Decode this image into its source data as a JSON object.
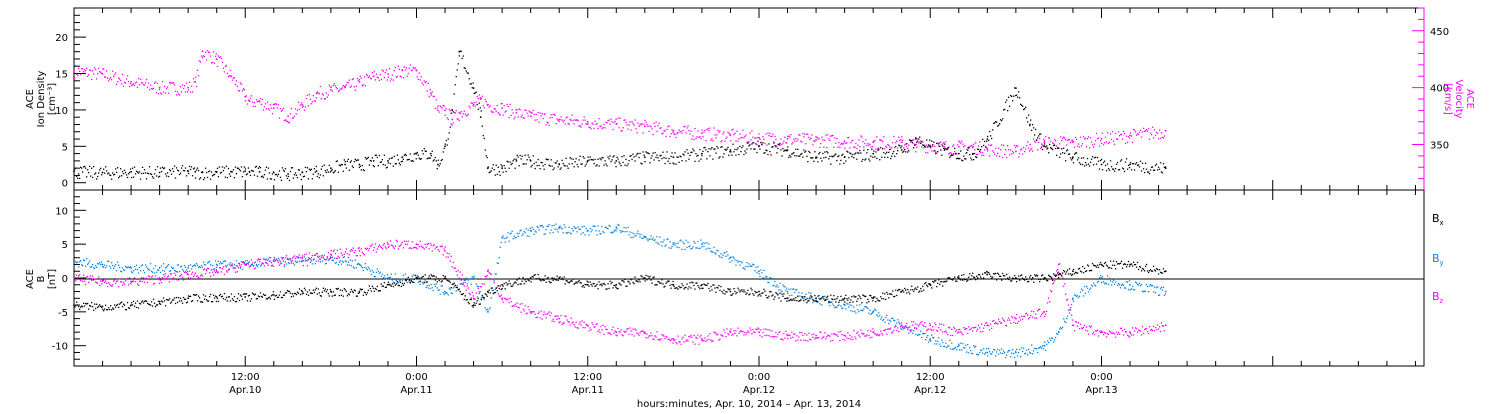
{
  "colors": {
    "axis": "#000000",
    "density": "#000000",
    "velocity": "#ff00ff",
    "bx": "#000000",
    "by": "#0a84e0",
    "bz": "#ff00ff"
  },
  "time_axis": {
    "label": "hours:minutes, Apr. 10, 2014 – Apr. 13, 2014",
    "ticks": [
      {
        "hours": 12,
        "time": "12:00",
        "date": "Apr.10"
      },
      {
        "hours": 24,
        "time": "0:00",
        "date": "Apr.11"
      },
      {
        "hours": 36,
        "time": "12:00",
        "date": "Apr.11"
      },
      {
        "hours": 48,
        "time": "0:00",
        "date": "Apr.12"
      },
      {
        "hours": 60,
        "time": "12:00",
        "date": "Apr.12"
      },
      {
        "hours": 72,
        "time": "0:00",
        "date": "Apr.13"
      }
    ]
  },
  "chart_data": [
    {
      "type": "scatter",
      "panel": "ion-density-velocity",
      "ylabel_left": [
        "ACE",
        "Ion Density",
        "[cm⁻³]"
      ],
      "ylabel_right": [
        "ACE",
        "Velocity",
        "[km/s]"
      ],
      "ylim_left": [
        -1,
        24
      ],
      "ylim_right": [
        310,
        470
      ],
      "yticks_left": [
        0,
        5,
        10,
        15,
        20
      ],
      "yticks_right": [
        350,
        400,
        450
      ],
      "x_hours": [
        0,
        2,
        4,
        6,
        8,
        8.5,
        9,
        10,
        11,
        12,
        12.3,
        13,
        14,
        15,
        16,
        17,
        18,
        19,
        20,
        21,
        22,
        23,
        24,
        25,
        25.5,
        26,
        26.5,
        27,
        28,
        28.5,
        29,
        30,
        31,
        32,
        34,
        36,
        38,
        40,
        42,
        44,
        46,
        48,
        50,
        52,
        54,
        56,
        58,
        59,
        60,
        61,
        62,
        63,
        64,
        66,
        67,
        68,
        70,
        72,
        74,
        76.5
      ],
      "series": [
        {
          "name": "Ion Density",
          "axis": "left",
          "values": [
            1.5,
            1.4,
            1.5,
            1.4,
            1.6,
            1.5,
            1.4,
            1.5,
            1.5,
            1.6,
            1.5,
            1.5,
            1.4,
            1.2,
            1.4,
            1.6,
            2.0,
            2.5,
            2.5,
            3.0,
            3.0,
            3.5,
            4.0,
            4.0,
            2.5,
            5.0,
            10.0,
            18.0,
            13.0,
            9.0,
            2.0,
            2.0,
            3.0,
            3.0,
            2.5,
            3.0,
            3.0,
            3.5,
            3.5,
            4.0,
            4.5,
            5.0,
            4.5,
            3.5,
            3.5,
            4.0,
            4.5,
            6.0,
            5.0,
            4.5,
            4.0,
            4.0,
            6.0,
            13.0,
            8.0,
            5.0,
            3.5,
            2.5,
            2.5,
            2.0
          ]
        },
        {
          "name": "Velocity",
          "axis": "right",
          "values": [
            415,
            412,
            405,
            400,
            400,
            405,
            432,
            425,
            410,
            392,
            388,
            388,
            382,
            375,
            385,
            395,
            398,
            400,
            405,
            410,
            412,
            415,
            415,
            395,
            380,
            380,
            372,
            378,
            385,
            390,
            385,
            382,
            378,
            375,
            372,
            370,
            368,
            366,
            362,
            360,
            358,
            356,
            355,
            354,
            353,
            352,
            352,
            350,
            349,
            348,
            348,
            348,
            346,
            344,
            350,
            352,
            352,
            355,
            358,
            362
          ]
        }
      ]
    },
    {
      "type": "scatter",
      "panel": "magnetic-field",
      "ylabel_left": [
        "ACE",
        "B",
        "[nT]"
      ],
      "ylim": [
        -13,
        13
      ],
      "yticks": [
        -10,
        -5,
        0,
        5,
        10
      ],
      "zero_line": true,
      "x_hours": [
        0,
        2,
        4,
        6,
        8,
        10,
        12,
        14,
        16,
        18,
        20,
        22,
        24,
        26,
        28,
        29,
        30,
        32,
        34,
        36,
        38,
        40,
        42,
        44,
        46,
        48,
        50,
        52,
        54,
        56,
        58,
        60,
        62,
        64,
        66,
        68,
        69,
        70,
        72,
        74,
        76.5
      ],
      "series": [
        {
          "name": "Bx",
          "legend": "Bx",
          "values": [
            -4,
            -4.2,
            -4,
            -3.5,
            -3,
            -2.8,
            -2.8,
            -2.5,
            -2,
            -2,
            -2,
            -1,
            0,
            0,
            -4,
            -2,
            -1,
            0,
            0,
            -1,
            -1,
            0,
            -1,
            -1,
            -2,
            -2,
            -3,
            -3,
            -3,
            -3,
            -2,
            -1,
            0,
            0.5,
            0,
            0,
            0.5,
            1,
            2,
            2,
            1
          ]
        },
        {
          "name": "By",
          "legend": "By",
          "values": [
            2.5,
            2,
            1.5,
            1.5,
            1.5,
            2,
            2,
            2.5,
            2.5,
            3,
            2,
            0,
            0,
            -2,
            0,
            -5,
            6,
            7,
            7.5,
            7,
            7.5,
            6,
            5,
            5,
            3,
            1,
            -2,
            -3,
            -4,
            -5,
            -7,
            -9,
            -10,
            -11,
            -11,
            -10,
            -8,
            -3,
            0,
            -1,
            -2
          ]
        },
        {
          "name": "Bz",
          "legend": "Bz",
          "values": [
            0,
            -0.5,
            -0.5,
            0,
            0.5,
            1,
            2,
            2.5,
            3,
            3.5,
            4,
            5,
            5,
            4,
            -3,
            1,
            -3,
            -5,
            -6,
            -7,
            -8,
            -8,
            -9,
            -9,
            -8,
            -8,
            -8.5,
            -8.5,
            -8.5,
            -8,
            -7,
            -7,
            -8,
            -7,
            -6,
            -5,
            2,
            -7,
            -8,
            -8,
            -7
          ]
        }
      ]
    }
  ]
}
